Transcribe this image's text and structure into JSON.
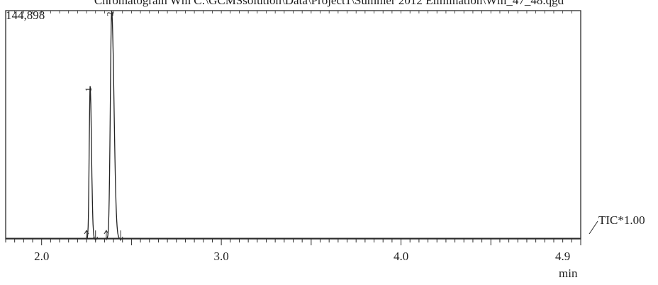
{
  "header": {
    "title": "Chromatogram Wm C:\\GCMSsolution\\Data\\Project1\\Summer 2012 Elimination\\Wm_47_48.qgd"
  },
  "chart_data": {
    "type": "line",
    "title": "Chromatogram Wm C:\\GCMSsolution\\Data\\Project1\\Summer 2012 Elimination\\Wm_47_48.qgd",
    "xlabel": "min",
    "ylabel": "",
    "xlim": [
      1.8,
      5.0
    ],
    "ylim": [
      0,
      144898
    ],
    "y_max_label": "144,898",
    "x_ticks": [
      "2.0",
      "3.0",
      "4.0",
      "4.9"
    ],
    "x_tick_values": [
      2.0,
      3.0,
      4.0,
      4.9
    ],
    "trace_label": "TIC*1.00",
    "grid": false,
    "peaks": [
      {
        "label": "1",
        "rt": 2.27,
        "height": 97000,
        "start": 2.25,
        "end": 2.3
      },
      {
        "label": "2",
        "rt": 2.39,
        "height": 144898,
        "start": 2.36,
        "end": 2.44
      }
    ]
  }
}
